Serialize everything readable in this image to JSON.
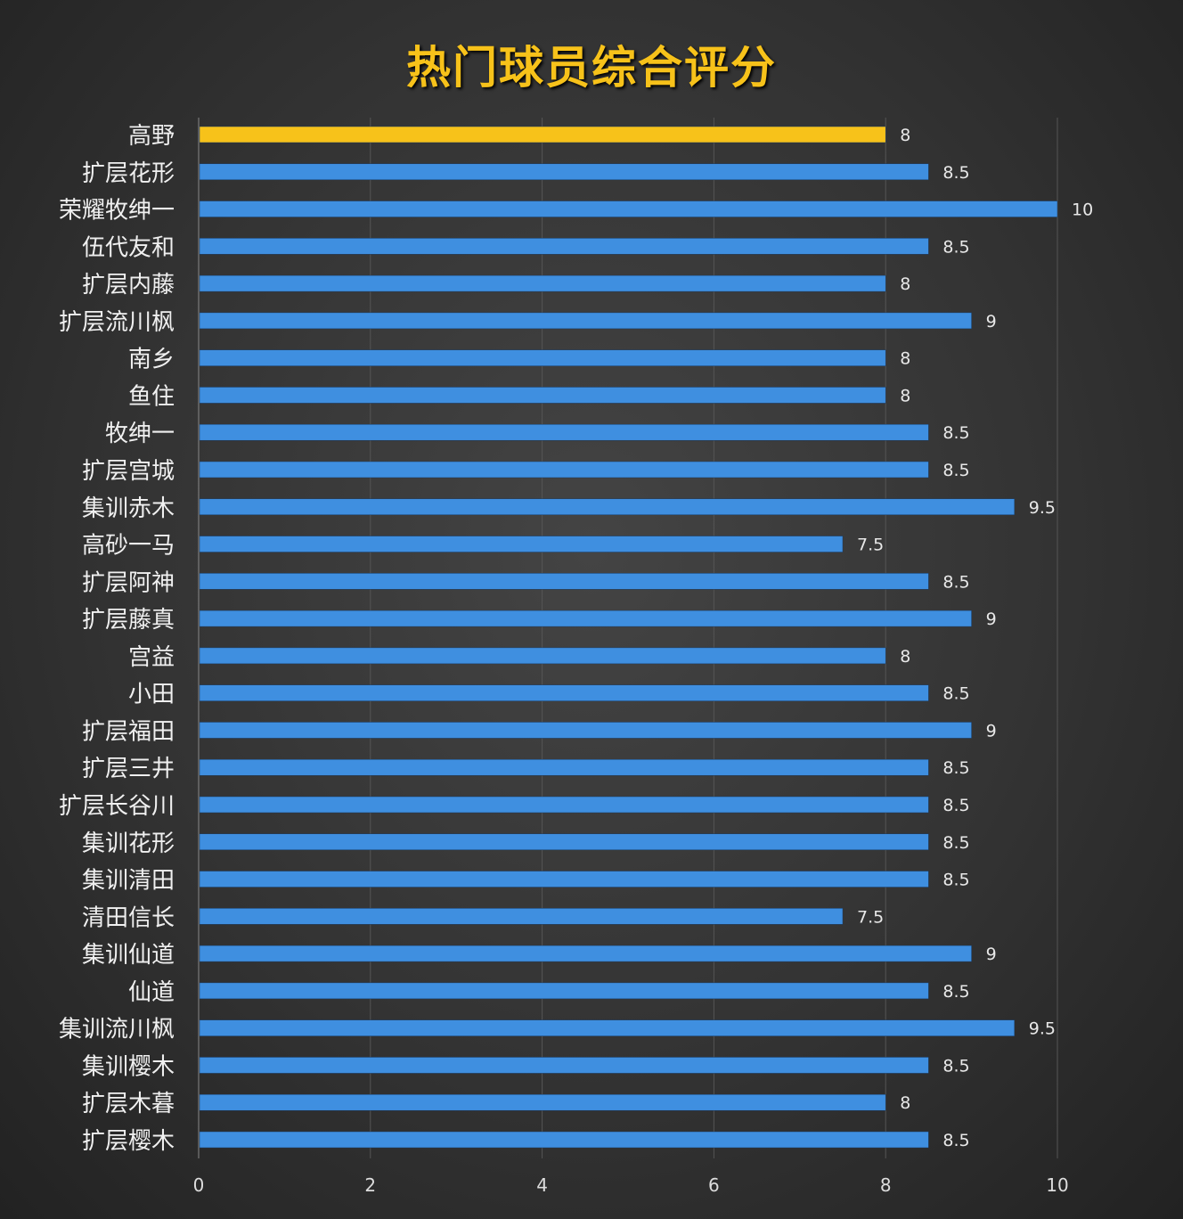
{
  "chart_data": {
    "type": "bar",
    "orientation": "horizontal",
    "title": "热门球员综合评分",
    "categories": [
      "高野",
      "扩层花形",
      "荣耀牧绅一",
      "伍代友和",
      "扩层内藤",
      "扩层流川枫",
      "南乡",
      "鱼住",
      "牧绅一",
      "扩层宫城",
      "集训赤木",
      "高砂一马",
      "扩层阿神",
      "扩层藤真",
      "宫益",
      "小田",
      "扩层福田",
      "扩层三井",
      "扩层长谷川",
      "集训花形",
      "集训清田",
      "清田信长",
      "集训仙道",
      "仙道",
      "集训流川枫",
      "集训樱木",
      "扩层木暮",
      "扩层樱木"
    ],
    "values": [
      8,
      8.5,
      10,
      8.5,
      8,
      9,
      8,
      8,
      8.5,
      8.5,
      9.5,
      7.5,
      8.5,
      9,
      8,
      8.5,
      9,
      8.5,
      8.5,
      8.5,
      8.5,
      7.5,
      9,
      8.5,
      9.5,
      8.5,
      8,
      8.5
    ],
    "xlim": [
      0,
      10
    ],
    "xticks": [
      "0",
      "2",
      "4",
      "6",
      "8",
      "10"
    ],
    "grid": true,
    "colors": {
      "highlight": "#f7c21a",
      "bar": "#3f8fe0",
      "background": "#333333",
      "text": "#f0f0f0"
    },
    "highlight_index": 0
  }
}
